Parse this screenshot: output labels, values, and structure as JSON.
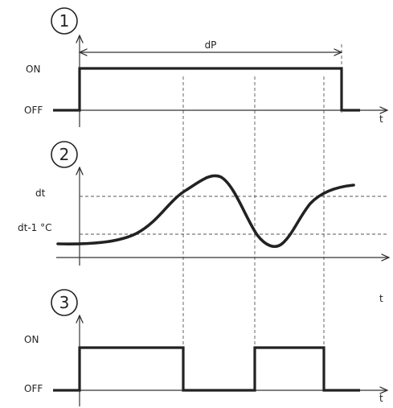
{
  "panel1": {
    "number": "1",
    "label_on": "ON",
    "label_off": "OFF",
    "t_label": "t",
    "dp_label": "dP"
  },
  "panel2": {
    "number": "2",
    "label_dt": "dt",
    "label_dt1": "dt-1 °C"
  },
  "panel3": {
    "number": "3",
    "t_label_top": "t",
    "label_on": "ON",
    "label_off": "OFF",
    "t_label": "t"
  },
  "colors": {
    "ink": "#222222",
    "background": "#ffffff"
  }
}
